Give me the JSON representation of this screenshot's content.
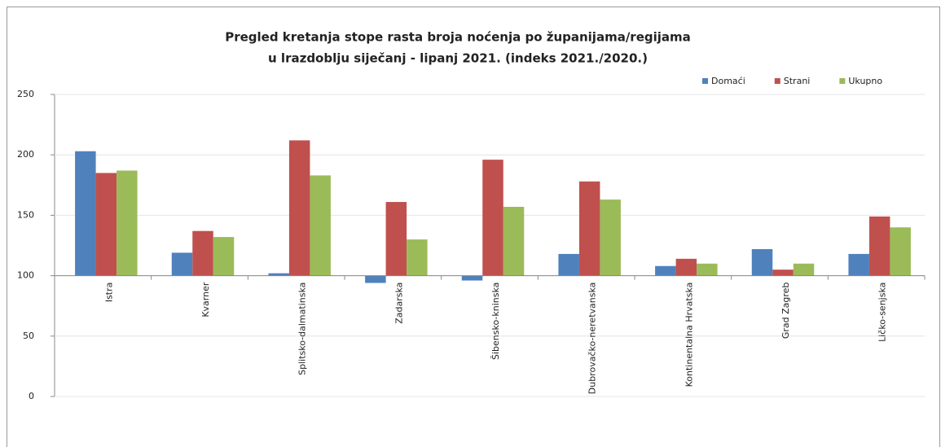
{
  "chart_data": {
    "type": "bar",
    "title": [
      "Pregled kretanja stope rasta broja noćenja po županijama/regijama",
      "u lrazdoblju siječanj - lipanj 2021.  (indeks 2021./2020.)"
    ],
    "categories": [
      "Istra",
      "Kvarner",
      "Splitsko-dalmatinska",
      "Zadarska",
      "Šibensko-kninska",
      "Dubrovačko-neretvanska",
      "Kontinentalna Hrvatska",
      "Grad Zagreb",
      "Ličko-senjska"
    ],
    "series": [
      {
        "name": "Domaći",
        "color": "#4f81bd",
        "values": [
          203,
          119,
          102,
          94,
          96,
          118,
          108,
          122,
          118
        ]
      },
      {
        "name": "Strani",
        "color": "#c0504d",
        "values": [
          185,
          137,
          212,
          161,
          196,
          178,
          114,
          105,
          149
        ]
      },
      {
        "name": "Ukupno",
        "color": "#9bbb59",
        "values": [
          187,
          132,
          183,
          130,
          157,
          163,
          110,
          110,
          140
        ]
      }
    ],
    "ylim": [
      0,
      250
    ],
    "yticks": [
      0,
      50,
      100,
      150,
      200,
      250
    ],
    "x_axis_crosses": 100,
    "grid": true,
    "legend": "top-right"
  }
}
